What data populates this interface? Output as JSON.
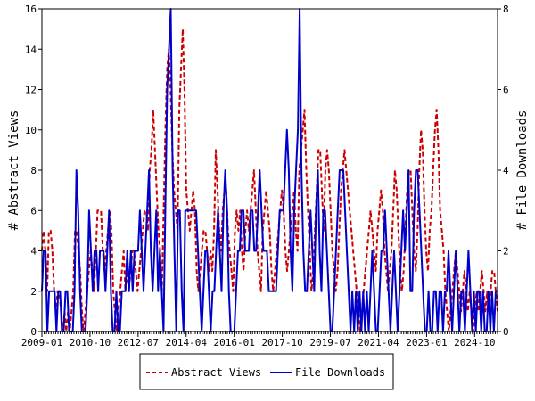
{
  "chart_data": {
    "type": "line",
    "ylabel_left": "# Abstract Views",
    "ylabel_right": "# File Downloads",
    "x_tick_labels": [
      "2009-01",
      "2010-10",
      "2012-07",
      "2014-04",
      "2016-01",
      "2017-10",
      "2019-07",
      "2021-04",
      "2023-01",
      "2024-10"
    ],
    "ylim_left": [
      0,
      16
    ],
    "yticks_left": [
      0,
      2,
      4,
      6,
      8,
      10,
      12,
      14,
      16
    ],
    "ylim_right": [
      0,
      8
    ],
    "yticks_right": [
      0,
      2,
      4,
      6,
      8
    ],
    "x_start": "2009-01",
    "x_end": "2025-08",
    "grid": false,
    "legend_position": "bottom-center",
    "series": [
      {
        "name": "Abstract Views",
        "color": "#cc0000",
        "style": "dashed",
        "axis": "left",
        "values": [
          4,
          5,
          4,
          2,
          5,
          5,
          4,
          2,
          1,
          2,
          2,
          1,
          0,
          1,
          0,
          1,
          0,
          1,
          2,
          5,
          5,
          4,
          3,
          1,
          0,
          1,
          2,
          3,
          4,
          3,
          2,
          4,
          6,
          6,
          6,
          4,
          3,
          4,
          5,
          6,
          5,
          2,
          1,
          0,
          1,
          2,
          3,
          4,
          2,
          3,
          2,
          3,
          4,
          4,
          3,
          2,
          3,
          4,
          5,
          6,
          6,
          5,
          8,
          9,
          11,
          9,
          7,
          5,
          4,
          2,
          6,
          10,
          13,
          14,
          12,
          9,
          7,
          6,
          5,
          11,
          13,
          15,
          12,
          7,
          6,
          5,
          6,
          7,
          6,
          3,
          2,
          3,
          4,
          5,
          5,
          4,
          3,
          4,
          3,
          5,
          9,
          7,
          5,
          4,
          6,
          7,
          7,
          5,
          4,
          3,
          2,
          5,
          6,
          5,
          6,
          4,
          3,
          5,
          6,
          5,
          6,
          7,
          8,
          6,
          4,
          3,
          2,
          5,
          6,
          7,
          6,
          5,
          3,
          2,
          3,
          4,
          5,
          6,
          7,
          6,
          4,
          3,
          4,
          5,
          6,
          7,
          5,
          4,
          8,
          9,
          10,
          11,
          8,
          6,
          4,
          2,
          3,
          5,
          7,
          9,
          9,
          7,
          5,
          8,
          9,
          8,
          6,
          4,
          3,
          2,
          3,
          5,
          7,
          8,
          9,
          8,
          7,
          6,
          5,
          4,
          3,
          2,
          1,
          0,
          1,
          2,
          3,
          4,
          5,
          6,
          5,
          4,
          3,
          5,
          6,
          7,
          6,
          4,
          3,
          2,
          3,
          4,
          6,
          8,
          7,
          5,
          3,
          2,
          3,
          5,
          7,
          8,
          8,
          6,
          4,
          3,
          5,
          8,
          10,
          9,
          6,
          4,
          3,
          5,
          6,
          8,
          10,
          11,
          9,
          6,
          5,
          4,
          2,
          1,
          0,
          1,
          2,
          3,
          4,
          3,
          2,
          1,
          2,
          3,
          2,
          1,
          2,
          1,
          0,
          1,
          2,
          1,
          2,
          3,
          2,
          1,
          2,
          1,
          2,
          3,
          3,
          2,
          1
        ]
      },
      {
        "name": "File Downloads",
        "color": "#0000cc",
        "style": "solid",
        "axis": "right",
        "values": [
          1,
          2,
          2,
          0,
          1,
          1,
          1,
          1,
          0,
          1,
          1,
          0,
          0,
          1,
          1,
          0,
          0,
          0,
          1,
          4,
          3,
          1,
          0,
          0,
          0,
          1,
          3,
          2,
          1,
          2,
          2,
          1,
          2,
          2,
          2,
          1,
          2,
          3,
          1,
          0,
          0,
          1,
          0,
          0,
          1,
          1,
          1,
          2,
          1,
          2,
          1,
          2,
          2,
          2,
          3,
          2,
          1,
          2,
          3,
          4,
          2,
          1,
          2,
          3,
          1,
          2,
          1,
          0,
          3,
          6,
          7,
          8,
          4,
          2,
          0,
          3,
          3,
          1,
          0,
          3,
          3,
          3,
          3,
          3,
          3,
          3,
          2,
          1,
          0,
          1,
          2,
          2,
          1,
          0,
          1,
          1,
          2,
          3,
          2,
          1,
          3,
          4,
          3,
          1,
          0,
          0,
          0,
          1,
          2,
          2,
          3,
          3,
          2,
          2,
          2,
          3,
          3,
          2,
          2,
          3,
          4,
          3,
          2,
          2,
          2,
          1,
          1,
          1,
          1,
          1,
          2,
          3,
          3,
          3,
          4,
          5,
          4,
          2,
          1,
          3,
          4,
          5,
          8,
          4,
          2,
          1,
          1,
          2,
          3,
          2,
          1,
          3,
          4,
          2,
          1,
          3,
          3,
          2,
          1,
          0,
          0,
          1,
          2,
          3,
          4,
          4,
          4,
          3,
          2,
          1,
          0,
          1,
          0,
          1,
          0,
          1,
          0,
          1,
          0,
          1,
          0,
          1,
          2,
          1,
          0,
          0,
          1,
          2,
          2,
          3,
          2,
          1,
          0,
          1,
          2,
          1,
          0,
          1,
          2,
          3,
          2,
          3,
          4,
          1,
          1,
          3,
          4,
          4,
          3,
          2,
          1,
          0,
          0,
          1,
          0,
          0,
          1,
          1,
          0,
          1,
          1,
          0,
          1,
          1,
          2,
          1,
          0,
          1,
          2,
          1,
          0,
          1,
          1,
          0,
          1,
          2,
          1,
          0,
          1,
          0,
          1,
          1,
          0,
          1,
          0,
          0,
          1,
          0,
          1,
          0,
          1,
          1
        ]
      }
    ]
  }
}
